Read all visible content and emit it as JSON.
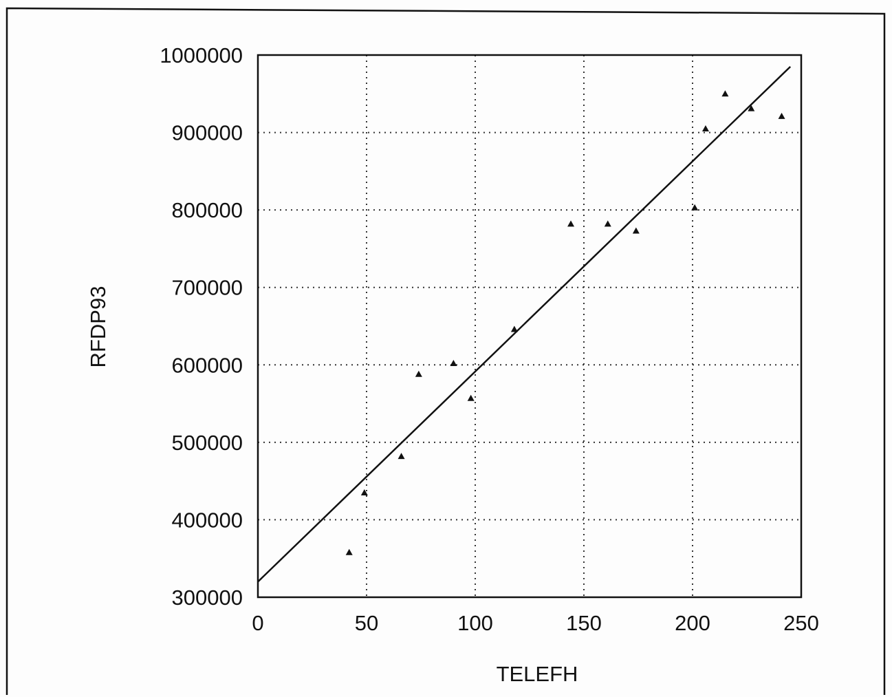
{
  "chart_data": {
    "type": "scatter",
    "title": "",
    "xlabel": "TELEFH",
    "ylabel": "RFDP93",
    "xlim": [
      0,
      250
    ],
    "ylim": [
      300000,
      1000000
    ],
    "x_ticks": [
      "0",
      "50",
      "100",
      "150",
      "200",
      "250"
    ],
    "y_ticks": [
      "300000",
      "400000",
      "500000",
      "600000",
      "700000",
      "800000",
      "900000",
      "1000000"
    ],
    "grid": true,
    "legend": "none",
    "series": [
      {
        "x": [
          42,
          49,
          66,
          74,
          90,
          98,
          118,
          144,
          161,
          174,
          201,
          206,
          215,
          227,
          241
        ],
        "y": [
          358000,
          435000,
          482000,
          588000,
          602000,
          557000,
          646000,
          782000,
          782000,
          773000,
          803000,
          905000,
          950000,
          931000,
          921000
        ]
      }
    ],
    "fit_line": {
      "x": [
        0,
        245
      ],
      "y": [
        320000,
        985000
      ]
    },
    "colors": {
      "ink": "#111111",
      "background": "#fdfdfd"
    }
  }
}
